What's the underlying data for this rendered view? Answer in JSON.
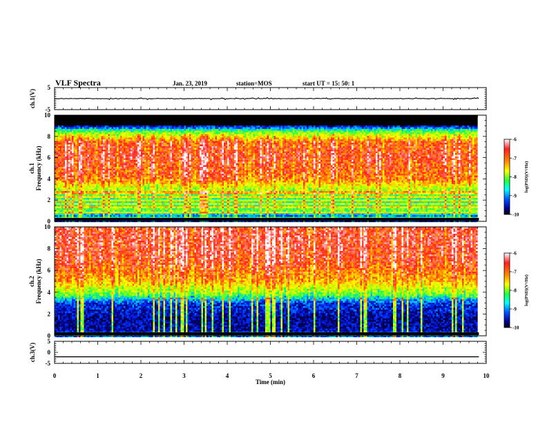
{
  "header": {
    "title": "VLF Spectra",
    "date": "Jan. 23, 2019",
    "station": "station=MOS",
    "start": "start UT =  15: 50: 1"
  },
  "colorbar": {
    "label": "log(PSD)(V²/Hz)",
    "ticks": [
      -6,
      -7,
      -8,
      -9,
      -10
    ],
    "colormap": [
      "#ffffff",
      "#ff2020",
      "#ff9a00",
      "#ffff00",
      "#20ff40",
      "#00ffff",
      "#0050ff",
      "#000090",
      "#000000"
    ]
  },
  "chart_data": [
    {
      "type": "line",
      "panel": "ch.1 voltage",
      "ylabel": "ch.1(V)",
      "ylim": [
        -5,
        5
      ],
      "yticks": [
        5,
        -5
      ],
      "x": [
        0,
        10
      ],
      "y": [
        0,
        0
      ]
    },
    {
      "type": "heatmap",
      "panel": "ch.1 spectrogram",
      "ylabel_lines": [
        "ch.1",
        "Frequency (kHz)"
      ],
      "ylim": [
        0,
        10
      ],
      "yticks": [
        0,
        2,
        4,
        6,
        8,
        10
      ],
      "xlim": [
        0,
        10
      ],
      "data_end_min": 9.83,
      "value_profile_khz_logpsd": [
        [
          0.3,
          -9.6
        ],
        [
          1.0,
          -8.3
        ],
        [
          2.0,
          -8.6
        ],
        [
          3.0,
          -8.0
        ],
        [
          4.0,
          -7.0
        ],
        [
          6.0,
          -6.7
        ],
        [
          7.5,
          -6.9
        ],
        [
          8.5,
          -8.4
        ],
        [
          9.0,
          -9.8
        ],
        [
          9.6,
          -10.5
        ]
      ],
      "features": {
        "lines_khz": [
          0.4,
          0.8,
          1.3,
          1.7,
          2.0,
          2.35,
          2.7
        ],
        "masked_above_khz": 9.0
      }
    },
    {
      "type": "heatmap",
      "panel": "ch.2 spectrogram",
      "ylabel_lines": [
        "ch.2",
        "Frequency (kHz)"
      ],
      "ylim": [
        0,
        10
      ],
      "yticks": [
        0,
        2,
        4,
        6,
        8,
        10
      ],
      "xlim": [
        0,
        10
      ],
      "data_end_min": 9.83,
      "value_profile_khz_logpsd": [
        [
          0.2,
          -9.8
        ],
        [
          1.5,
          -9.9
        ],
        [
          3.0,
          -9.5
        ],
        [
          3.8,
          -8.3
        ],
        [
          5.0,
          -7.3
        ],
        [
          7.0,
          -6.7
        ],
        [
          9.0,
          -6.6
        ],
        [
          10.0,
          -6.7
        ]
      ],
      "features": {
        "lines_khz": [
          0.15
        ],
        "masked_above_khz": 10.0
      }
    },
    {
      "type": "line",
      "panel": "ch.3 voltage",
      "ylabel": "ch.3(V)",
      "ylim": [
        -5,
        5
      ],
      "yticks": [
        5,
        0,
        -5
      ],
      "x": [
        0,
        10
      ],
      "y": [
        -2,
        -2
      ]
    }
  ],
  "xaxis": {
    "label": "Time (min)",
    "ticks": [
      0,
      1,
      2,
      3,
      4,
      5,
      6,
      7,
      8,
      9,
      10
    ]
  }
}
